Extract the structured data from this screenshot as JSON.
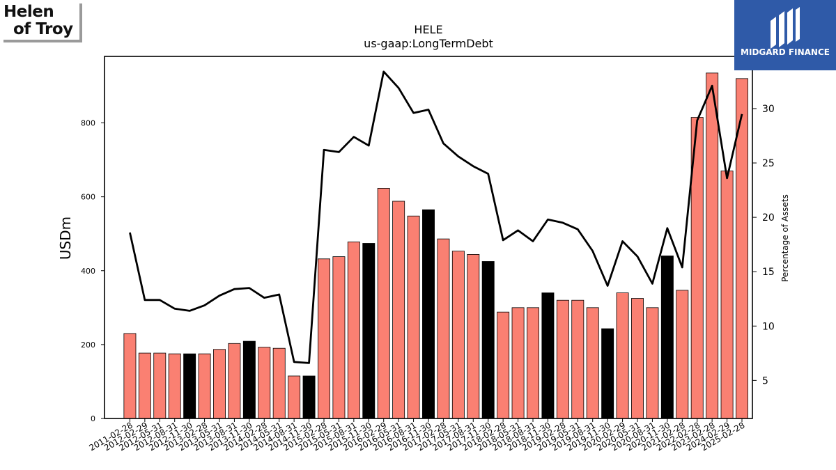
{
  "logos": {
    "left_text_line1": "Helen",
    "left_text_line2": "of Troy",
    "right_text": "MIDGARD FINANCE"
  },
  "chart_data": {
    "type": "bar",
    "title": "HELE",
    "subtitle": "us-gaap:LongTermDebt",
    "ylabel": "USDm",
    "y2label": "Percentage of Assets",
    "ylim": [
      0,
      980
    ],
    "y2lim": [
      1.5,
      34.8
    ],
    "yticks": [
      0,
      200,
      400,
      600,
      800
    ],
    "y2ticks": [
      5,
      10,
      15,
      20,
      25,
      30
    ],
    "colors": {
      "bar": "#fa8072",
      "highlight": "#000000",
      "line": "#000000"
    },
    "categories": [
      "2011-02-28",
      "2012-02-29",
      "2012-05-31",
      "2012-08-31",
      "2012-11-30",
      "2013-02-28",
      "2013-05-31",
      "2013-08-31",
      "2013-11-30",
      "2014-02-28",
      "2014-05-31",
      "2014-08-31",
      "2014-11-30",
      "2015-02-28",
      "2015-05-31",
      "2015-08-31",
      "2015-11-30",
      "2016-02-29",
      "2016-05-31",
      "2016-08-31",
      "2016-11-30",
      "2017-02-28",
      "2017-05-31",
      "2017-08-31",
      "2017-11-30",
      "2018-02-28",
      "2018-05-31",
      "2018-08-31",
      "2018-11-30",
      "2019-02-28",
      "2019-05-31",
      "2019-08-31",
      "2019-11-30",
      "2020-02-29",
      "2020-05-31",
      "2020-08-31",
      "2020-11-30",
      "2021-02-28",
      "2022-02-28",
      "2023-02-28",
      "2024-02-29",
      "2025-02-28"
    ],
    "series": [
      {
        "type": "bar",
        "values": [
          230,
          177,
          177,
          175,
          175,
          175,
          187,
          203,
          209,
          193,
          190,
          115,
          115,
          432,
          438,
          478,
          474,
          623,
          588,
          548,
          565,
          486,
          453,
          444,
          425,
          288,
          300,
          300,
          340,
          320,
          320,
          300,
          243,
          340,
          325,
          300,
          440,
          347,
          815,
          935,
          670,
          920
        ],
        "highlight": [
          false,
          false,
          false,
          false,
          true,
          false,
          false,
          false,
          true,
          false,
          false,
          false,
          true,
          false,
          false,
          false,
          true,
          false,
          false,
          false,
          true,
          false,
          false,
          false,
          true,
          false,
          false,
          false,
          true,
          false,
          false,
          false,
          true,
          false,
          false,
          false,
          true,
          false,
          false,
          false,
          false,
          false
        ]
      },
      {
        "type": "line",
        "axis": "right",
        "values": [
          18.6,
          12.4,
          12.4,
          11.6,
          11.4,
          11.9,
          12.8,
          13.4,
          13.5,
          12.6,
          12.9,
          6.7,
          6.6,
          26.2,
          26.0,
          27.4,
          26.6,
          33.4,
          31.9,
          29.6,
          29.9,
          26.8,
          25.6,
          24.7,
          24.0,
          17.9,
          18.8,
          17.8,
          19.8,
          19.5,
          18.9,
          16.9,
          13.7,
          17.8,
          16.4,
          13.9,
          19.0,
          15.4,
          28.9,
          32.1,
          23.6,
          29.5
        ]
      }
    ]
  }
}
